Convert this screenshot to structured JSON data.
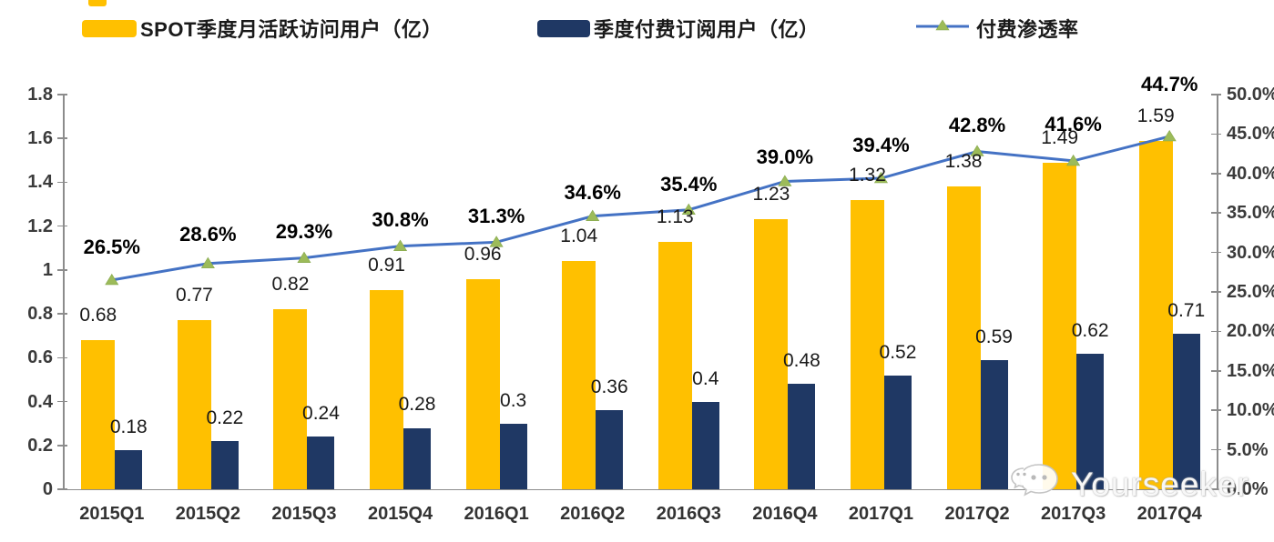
{
  "legend": {
    "items": [
      {
        "label": "SPOT季度月活跃访问用户（亿）",
        "type": "bar",
        "color": "#FFC000"
      },
      {
        "label": "季度付费订阅用户（亿）",
        "type": "bar",
        "color": "#1F3864"
      },
      {
        "label": "付费渗透率",
        "type": "line",
        "color": "#4472C4",
        "marker_color": "#9CBB59"
      }
    ]
  },
  "chart_data": {
    "type": "bar",
    "subtype": "grouped-bars-with-line-overlay-dual-axis",
    "title": "",
    "categories": [
      "2015Q1",
      "2015Q2",
      "2015Q3",
      "2015Q4",
      "2016Q1",
      "2016Q2",
      "2016Q3",
      "2016Q4",
      "2017Q1",
      "2017Q2",
      "2017Q3",
      "2017Q4"
    ],
    "series": [
      {
        "name": "SPOT季度月活跃访问用户（亿）",
        "kind": "bar",
        "axis": "left",
        "color": "#FFC000",
        "values": [
          0.68,
          0.77,
          0.82,
          0.91,
          0.96,
          1.04,
          1.13,
          1.23,
          1.32,
          1.38,
          1.49,
          1.59
        ],
        "labels": [
          "0.68",
          "0.77",
          "0.82",
          "0.91",
          "0.96",
          "1.04",
          "1.13",
          "1.23",
          "1.32",
          "1.38",
          "1.49",
          "1.59"
        ]
      },
      {
        "name": "季度付费订阅用户（亿）",
        "kind": "bar",
        "axis": "left",
        "color": "#1F3864",
        "values": [
          0.18,
          0.22,
          0.24,
          0.28,
          0.3,
          0.36,
          0.4,
          0.48,
          0.52,
          0.59,
          0.62,
          0.71
        ],
        "labels": [
          "0.18",
          "0.22",
          "0.24",
          "0.28",
          "0.3",
          "0.36",
          "0.4",
          "0.48",
          "0.52",
          "0.59",
          "0.62",
          "0.71"
        ]
      },
      {
        "name": "付费渗透率",
        "kind": "line",
        "axis": "right",
        "color": "#4472C4",
        "marker": "triangle",
        "marker_color": "#9CBB59",
        "values": [
          26.5,
          28.6,
          29.3,
          30.8,
          31.3,
          34.6,
          35.4,
          39.0,
          39.4,
          42.8,
          41.6,
          44.7
        ],
        "labels": [
          "26.5%",
          "28.6%",
          "29.3%",
          "30.8%",
          "31.3%",
          "34.6%",
          "35.4%",
          "39.0%",
          "39.4%",
          "42.8%",
          "41.6%",
          "44.7%"
        ]
      }
    ],
    "left_axis": {
      "min": 0,
      "max": 1.8,
      "step": 0.2,
      "tick_labels": [
        "1.8",
        "1.6",
        "1.4",
        "1.2",
        "1",
        "0.8",
        "0.6",
        "0.4",
        "0.2",
        "0"
      ]
    },
    "right_axis": {
      "min": 0,
      "max": 50,
      "step": 5,
      "unit": "%",
      "tick_labels": [
        "50.0%",
        "45.0%",
        "40.0%",
        "35.0%",
        "30.0%",
        "25.0%",
        "20.0%",
        "15.0%",
        "10.0%",
        "5.0%",
        "0.0%"
      ]
    },
    "grid": false,
    "legend_position": "top"
  },
  "watermark": {
    "text": "Yourseeker",
    "icon": "wechat-chat-bubbles"
  }
}
